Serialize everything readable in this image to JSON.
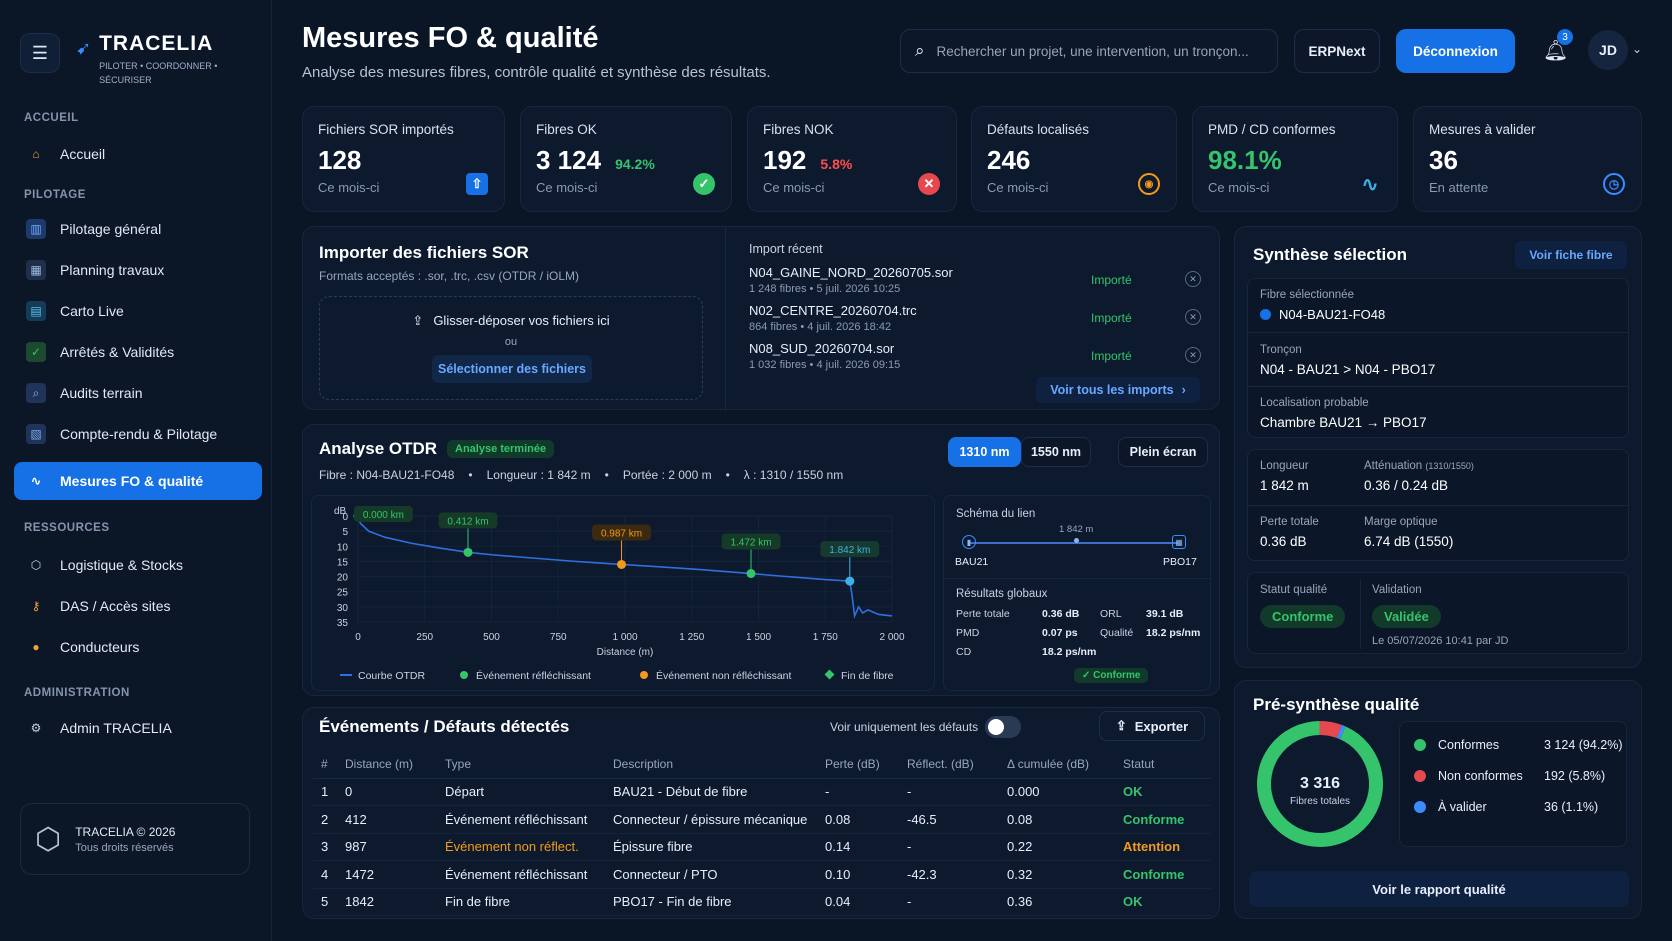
{
  "app": {
    "name": "TRACELIA",
    "tagline": "PILOTER • COORDONNER • SÉCURISER",
    "footer_name": "TRACELIA © 2026",
    "footer_rights": "Tous droits réservés"
  },
  "sidebar": {
    "sections": [
      "ACCUEIL",
      "PILOTAGE",
      "RESSOURCES",
      "ADMINISTRATION"
    ],
    "items": [
      {
        "label": "Accueil",
        "icon": "home-icon",
        "color": "#f0a23b"
      },
      {
        "label": "Pilotage général",
        "icon": "bar-chart-icon",
        "color": "#3d8bff"
      },
      {
        "label": "Planning travaux",
        "icon": "calendar-icon",
        "color": "#7aa4d8"
      },
      {
        "label": "Carto Live",
        "icon": "map-icon",
        "color": "#3db1e6"
      },
      {
        "label": "Arrêtés & Validités",
        "icon": "shield-check-icon",
        "color": "#35c46b"
      },
      {
        "label": "Audits terrain",
        "icon": "magnifier-icon",
        "color": "#6d9be8"
      },
      {
        "label": "Compte-rendu & Pilotage",
        "icon": "report-icon",
        "color": "#5c8ee8"
      },
      {
        "label": "Mesures FO & qualité",
        "icon": "pulse-icon",
        "color": "#ffffff"
      },
      {
        "label": "Logistique & Stocks",
        "icon": "box-icon",
        "color": "#c9d3e6"
      },
      {
        "label": "DAS / Accès sites",
        "icon": "key-icon",
        "color": "#f0a23b"
      },
      {
        "label": "Conducteurs",
        "icon": "person-icon",
        "color": "#f0a23b"
      },
      {
        "label": "Admin TRACELIA",
        "icon": "gear-icon",
        "color": "#c9d3e6"
      }
    ]
  },
  "header": {
    "title": "Mesures FO & qualité",
    "subtitle": "Analyse des mesures fibres, contrôle qualité et synthèse des résultats.",
    "search_placeholder": "Rechercher un projet, une intervention, un tronçon...",
    "erp_label": "ERPNext",
    "logout_label": "Déconnexion",
    "notif_count": "3",
    "avatar": "JD"
  },
  "kpis": [
    {
      "label": "Fichiers SOR importés",
      "value": "128",
      "pct": "",
      "sub": "Ce mois-ci",
      "icon": "upload-icon",
      "color": "#1671e6"
    },
    {
      "label": "Fibres OK",
      "value": "3 124",
      "pct": "94.2%",
      "sub": "Ce mois-ci",
      "icon": "check-circle-icon",
      "color": "#35c46b"
    },
    {
      "label": "Fibres NOK",
      "value": "192",
      "pct": "5.8%",
      "sub": "Ce mois-ci",
      "icon": "x-circle-icon",
      "color": "#e5484d"
    },
    {
      "label": "Défauts localisés",
      "value": "246",
      "pct": "",
      "sub": "Ce mois-ci",
      "icon": "target-icon",
      "color": "#f39a1d"
    },
    {
      "label": "PMD / CD conformes",
      "value": "98.1%",
      "pct": "",
      "sub": "Ce mois-ci",
      "icon": "pulse-icon",
      "color": "#3db1e6"
    },
    {
      "label": "Mesures à valider",
      "value": "36",
      "pct": "",
      "sub": "En attente",
      "icon": "clock-icon",
      "color": "#1671e6"
    }
  ],
  "import": {
    "title": "Importer des fichiers SOR",
    "formats": "Formats acceptés : .sor, .trc, .csv (OTDR / iOLM)",
    "drop_label": "Glisser-déposer vos fichiers ici",
    "or_label": "ou",
    "select_label": "Sélectionner des fichiers",
    "recent_title": "Import récent",
    "recent": [
      {
        "file": "N04_GAINE_NORD_20260705.sor",
        "fibres": "1 248 fibres",
        "date": "5 juil. 2026 10:25",
        "status": "Importé"
      },
      {
        "file": "N02_CENTRE_20260704.trc",
        "fibres": "864 fibres",
        "date": "4 juil. 2026 18:42",
        "status": "Importé"
      },
      {
        "file": "N08_SUD_20260704.sor",
        "fibres": "1 032 fibres",
        "date": "4 juil. 2026 09:15",
        "status": "Importé"
      }
    ],
    "see_all": "Voir tous les imports"
  },
  "otdr": {
    "title": "Analyse OTDR",
    "status": "Analyse terminée",
    "wl_1": "1310 nm",
    "wl_2": "1550 nm",
    "fullscreen": "Plein écran",
    "fibre": "Fibre : N04-BAU21-FO48",
    "longueur": "Longueur : 1 842 m",
    "portee": "Portée : 2 000 m",
    "lambda": "λ : 1310 / 1550 nm",
    "legend": [
      "Courbe OTDR",
      "Événement réfléchissant",
      "Événement non réfléchissant",
      "Fin de fibre"
    ],
    "schema_title": "Schéma du lien",
    "schema_start": "BAU21",
    "schema_end": "PBO17",
    "schema_len": "1 842 m",
    "results_title": "Résultats globaux",
    "results": [
      {
        "k": "Perte totale",
        "v": "0.36 dB",
        "k2": "ORL",
        "v2": "39.1 dB"
      },
      {
        "k": "PMD",
        "v": "0.07 ps",
        "k2": "Qualité",
        "v2": "18.2 ps/nm"
      },
      {
        "k": "CD",
        "v": "18.2 ps/nm",
        "k2": "",
        "v2": ""
      }
    ],
    "results_status": "Conforme"
  },
  "chart_data": {
    "type": "line",
    "title": "",
    "xlabel": "Distance (m)",
    "ylabel": "dB",
    "xlim": [
      0,
      2000
    ],
    "ylim": [
      0,
      35
    ],
    "x_ticks": [
      "0",
      "250",
      "500",
      "750",
      "1 000",
      "1 250",
      "1 500",
      "1 750",
      "2 000"
    ],
    "y_ticks": [
      "0",
      "5",
      "10",
      "15",
      "20",
      "25",
      "30",
      "35"
    ],
    "series": [
      {
        "name": "Courbe OTDR",
        "color": "#2f6fe0",
        "x": [
          0,
          10,
          40,
          100,
          200,
          300,
          412,
          500,
          600,
          700,
          800,
          900,
          987,
          1100,
          1200,
          1300,
          1400,
          1472,
          1550,
          1650,
          1750,
          1842,
          1850,
          1860,
          1875,
          1890,
          1910,
          1950,
          2000
        ],
        "y": [
          1,
          2.5,
          5,
          7,
          9,
          10.5,
          12,
          12.8,
          13.5,
          14.2,
          14.9,
          15.5,
          16,
          16.6,
          17.2,
          17.8,
          18.5,
          19,
          19.6,
          20.3,
          21,
          21.5,
          26,
          33,
          30,
          32,
          31,
          32.5,
          33
        ]
      }
    ],
    "events": [
      {
        "x": 0,
        "y": 0,
        "label": "0.000 km",
        "kind": "reflective"
      },
      {
        "x": 412,
        "y": 12,
        "label": "0.412 km",
        "kind": "reflective"
      },
      {
        "x": 987,
        "y": 16,
        "label": "0.987 km",
        "kind": "non_reflective"
      },
      {
        "x": 1472,
        "y": 19,
        "label": "1.472 km",
        "kind": "reflective"
      },
      {
        "x": 1842,
        "y": 21.5,
        "label": "1.842 km",
        "kind": "end"
      }
    ]
  },
  "events_table": {
    "title": "Événements / Défauts détectés",
    "toggle_label": "Voir uniquement les défauts",
    "export_label": "Exporter",
    "columns": [
      "#",
      "Distance (m)",
      "Type",
      "Description",
      "Perte (dB)",
      "Réflect. (dB)",
      "Δ cumulée (dB)",
      "Statut"
    ],
    "rows": [
      {
        "n": "1",
        "d": "0",
        "type": "Départ",
        "desc": "BAU21 - Début de fibre",
        "loss": "-",
        "refl": "-",
        "cum": "0.000",
        "status": "OK",
        "sc": "green"
      },
      {
        "n": "2",
        "d": "412",
        "type": "Événement réfléchissant",
        "desc": "Connecteur / épissure mécanique",
        "loss": "0.08",
        "refl": "-46.5",
        "cum": "0.08",
        "status": "Conforme",
        "sc": "green"
      },
      {
        "n": "3",
        "d": "987",
        "type": "Événement non réflect.",
        "desc": "Épissure fibre",
        "loss": "0.14",
        "refl": "-",
        "cum": "0.22",
        "status": "Attention",
        "sc": "orange"
      },
      {
        "n": "4",
        "d": "1472",
        "type": "Événement réfléchissant",
        "desc": "Connecteur / PTO",
        "loss": "0.10",
        "refl": "-42.3",
        "cum": "0.32",
        "status": "Conforme",
        "sc": "green"
      },
      {
        "n": "5",
        "d": "1842",
        "type": "Fin de fibre",
        "desc": "PBO17 - Fin de fibre",
        "loss": "0.04",
        "refl": "-",
        "cum": "0.36",
        "status": "OK",
        "sc": "green"
      }
    ]
  },
  "synthese": {
    "title": "Synthèse sélection",
    "link": "Voir fiche fibre",
    "fibre_label": "Fibre sélectionnée",
    "fibre": "N04-BAU21-FO48",
    "troncon_label": "Tronçon",
    "troncon": "N04 - BAU21 > N04 - PBO17",
    "loc_label": "Localisation probable",
    "loc": "Chambre BAU21 → PBO17",
    "longueur_label": "Longueur",
    "longueur": "1 842 m",
    "att_label": "Atténuation",
    "att_note": "(1310/1550)",
    "att": "0.36 / 0.24 dB",
    "perte_label": "Perte totale",
    "perte": "0.36 dB",
    "marge_label": "Marge optique",
    "marge": "6.74 dB (1550)",
    "statut_label": "Statut qualité",
    "statut": "Conforme",
    "valid_label": "Validation",
    "valid": "Validée",
    "valid_date": "Le 05/07/2026 10:41 par JD"
  },
  "quality": {
    "title": "Pré-synthèse qualité",
    "total": "3 316",
    "total_label": "Fibres totales",
    "items": [
      {
        "label": "Conformes",
        "value": "3 124",
        "pct": "(94.2%)",
        "color": "#35c46b",
        "fraction": 0.942
      },
      {
        "label": "Non conformes",
        "value": "192",
        "pct": "(5.8%)",
        "color": "#e5484d",
        "fraction": 0.058
      },
      {
        "label": "À valider",
        "value": "36",
        "pct": "(1.1%)",
        "color": "#3d8bff",
        "fraction": 0.011
      }
    ],
    "report_btn": "Voir le rapport qualité"
  }
}
